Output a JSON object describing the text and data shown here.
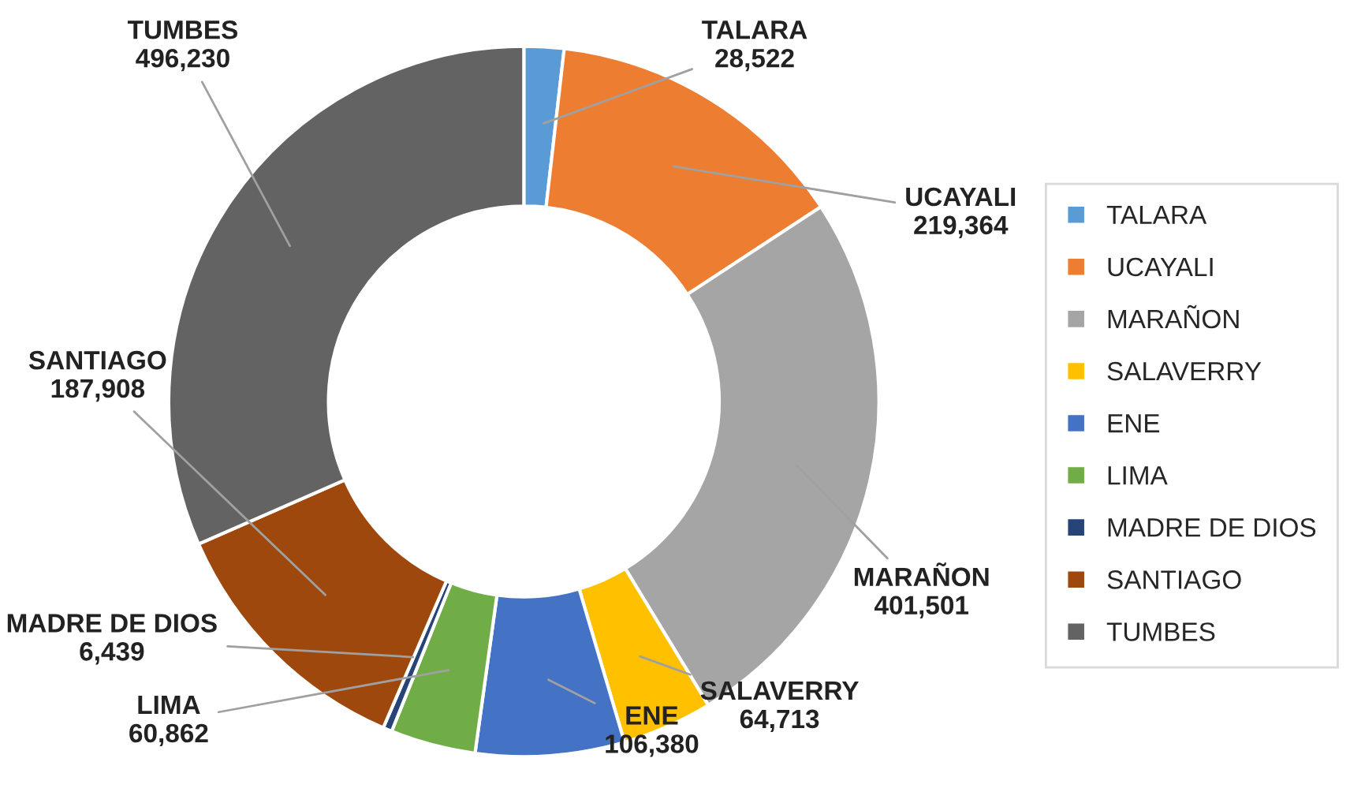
{
  "chart_data": {
    "type": "donut",
    "categories": [
      "TALARA",
      "UCAYALI",
      "MARAÑON",
      "SALAVERRY",
      "ENE",
      "LIMA",
      "MADRE DE DIOS",
      "SANTIAGO",
      "TUMBES"
    ],
    "values": [
      28522,
      219364,
      401501,
      64713,
      106380,
      60862,
      6439,
      187908,
      496230
    ],
    "colors": [
      "#5b9bd5",
      "#ed7d31",
      "#a5a5a5",
      "#ffc000",
      "#4472c4",
      "#70ad47",
      "#264478",
      "#9e480e",
      "#636363"
    ],
    "value_labels": [
      "28,522",
      "219,364",
      "401,501",
      "64,713",
      "106,380",
      "60,862",
      "6,439",
      "187,908",
      "496,230"
    ],
    "legend": "right"
  }
}
